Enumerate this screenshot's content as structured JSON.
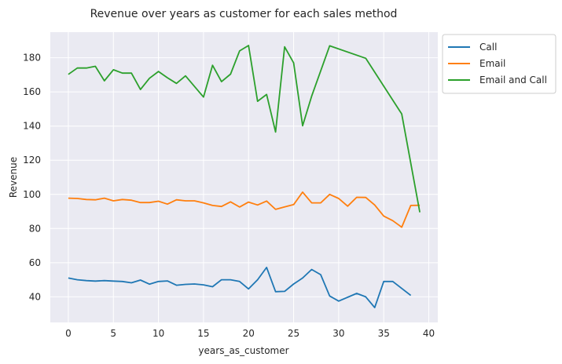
{
  "chart_data": {
    "type": "line",
    "title": "Revenue over years as customer for each sales method",
    "xlabel": "years_as_customer",
    "ylabel": "Revenue",
    "xlim": [
      -2,
      41
    ],
    "ylim": [
      25,
      195
    ],
    "xticks": [
      0,
      5,
      10,
      15,
      20,
      25,
      30,
      35,
      40
    ],
    "yticks": [
      40,
      60,
      80,
      100,
      120,
      140,
      160,
      180
    ],
    "grid": true,
    "legend_position": "outside-top-right",
    "series": [
      {
        "name": "Call",
        "color": "#1f77b4",
        "x": [
          0,
          1,
          2,
          3,
          4,
          5,
          6,
          7,
          8,
          9,
          10,
          11,
          12,
          13,
          14,
          15,
          16,
          17,
          18,
          19,
          20,
          21,
          22,
          23,
          24,
          25,
          26,
          27,
          28,
          29,
          30,
          32,
          33,
          34,
          35,
          36,
          38
        ],
        "y": [
          51,
          50,
          49.5,
          49.2,
          49.5,
          49.2,
          49,
          48.2,
          49.8,
          47.4,
          49,
          49.3,
          46.8,
          47.3,
          47.5,
          47,
          45.9,
          50,
          50,
          49,
          44.6,
          50,
          57.2,
          43,
          43.2,
          47.5,
          51,
          56,
          53,
          40.5,
          37.5,
          42,
          40,
          33.7,
          49,
          49,
          40.8
        ]
      },
      {
        "name": "Email",
        "color": "#ff7f0e",
        "x": [
          0,
          1,
          2,
          3,
          4,
          5,
          6,
          7,
          8,
          9,
          10,
          11,
          12,
          13,
          14,
          15,
          16,
          17,
          18,
          19,
          20,
          21,
          22,
          23,
          24,
          25,
          26,
          27,
          28,
          29,
          30,
          31,
          32,
          33,
          34,
          35,
          36,
          37,
          38,
          39
        ],
        "y": [
          97.8,
          97.6,
          97,
          96.8,
          97.8,
          96.2,
          97,
          96.6,
          95.2,
          95.2,
          96,
          94.3,
          96.8,
          96.2,
          96.2,
          95,
          93.5,
          92.9,
          95.6,
          92.6,
          95.5,
          93.8,
          96.1,
          91.2,
          92.7,
          94,
          101.3,
          95,
          95,
          100,
          97.6,
          93.1,
          98.3,
          98.2,
          93.8,
          87.3,
          84.6,
          80.8,
          93.5,
          93.6
        ]
      },
      {
        "name": "Email and Call",
        "color": "#2ca02c",
        "x": [
          0,
          1,
          2,
          3,
          4,
          5,
          6,
          7,
          8,
          9,
          10,
          11,
          12,
          13,
          15,
          16,
          17,
          18,
          19,
          20,
          21,
          22,
          23,
          24,
          25,
          26,
          27,
          29,
          33,
          37,
          39
        ],
        "y": [
          170.3,
          174,
          174,
          175,
          166.5,
          173,
          171,
          171,
          161.4,
          168,
          172,
          168.3,
          165,
          169.4,
          157,
          175.6,
          166,
          170.4,
          184,
          187.2,
          154.5,
          158.5,
          136.5,
          186.4,
          177,
          140.2,
          157.5,
          187,
          179.7,
          147.1,
          89.5
        ]
      }
    ]
  }
}
